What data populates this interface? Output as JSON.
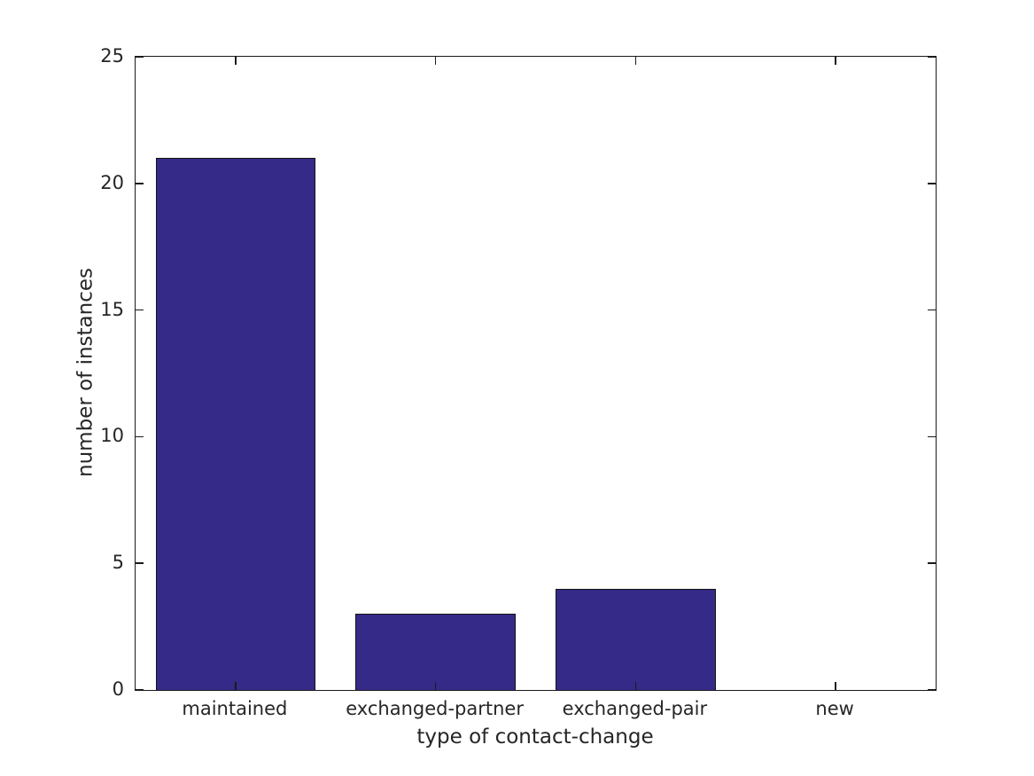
{
  "chart_data": {
    "type": "bar",
    "categories": [
      "maintained",
      "exchanged-partner",
      "exchanged-pair",
      "new"
    ],
    "values": [
      21,
      3,
      4,
      0
    ],
    "title": "",
    "xlabel": "type of contact-change",
    "ylabel": "number of instances",
    "ylim": [
      0,
      25
    ],
    "yticks": [
      0,
      5,
      10,
      15,
      20,
      25
    ],
    "bar_width_fraction": 0.8,
    "bar_color": "#352a87",
    "bar_edge_color": "#141414",
    "axis_color": "#1a1a1a",
    "text_color": "#262626",
    "background_color": "#ffffff",
    "grid": false,
    "legend": "none",
    "tick_direction": "in",
    "box": true
  }
}
